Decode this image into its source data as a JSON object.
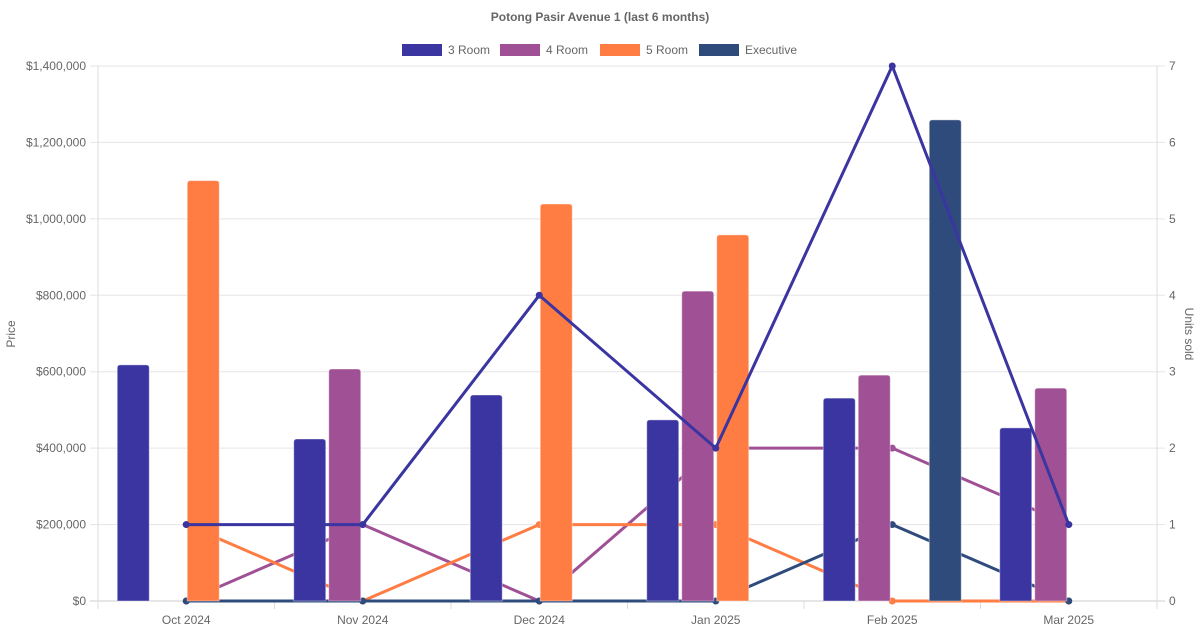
{
  "chart_data": {
    "type": "bar",
    "title": "Potong Pasir Avenue 1 (last 6 months)",
    "categories": [
      "Oct 2024",
      "Nov 2024",
      "Dec 2024",
      "Jan 2025",
      "Feb 2025",
      "Mar 2025"
    ],
    "ylabel": "Price",
    "y2label": "Units sold",
    "ylim": [
      0,
      1400000
    ],
    "y2lim": [
      0,
      7
    ],
    "yticks": [
      "$0",
      "$200,000",
      "$400,000",
      "$600,000",
      "$800,000",
      "$1,000,000",
      "$1,200,000",
      "$1,400,000"
    ],
    "y2ticks": [
      "0",
      "1",
      "2",
      "3",
      "4",
      "5",
      "6",
      "7"
    ],
    "legend_position": "top",
    "grid": true,
    "series": [
      {
        "name": "3 Room",
        "color": "#3a35a0",
        "price": [
          618000,
          424000,
          539000,
          474000,
          531000,
          453000
        ],
        "units": [
          1,
          1,
          4,
          2,
          7,
          1
        ]
      },
      {
        "name": "4 Room",
        "color": "#a05195",
        "price": [
          null,
          607000,
          null,
          811000,
          591000,
          557000
        ],
        "units": [
          0,
          1,
          0,
          2,
          2,
          1
        ]
      },
      {
        "name": "5 Room",
        "color": "#ff7c43",
        "price": [
          1100000,
          null,
          1039000,
          958000,
          null,
          null
        ],
        "units": [
          1,
          0,
          1,
          1,
          0,
          0
        ]
      },
      {
        "name": "Executive",
        "color": "#2f4b7c",
        "price": [
          null,
          null,
          null,
          null,
          1259000,
          null
        ],
        "units": [
          0,
          0,
          0,
          0,
          1,
          0
        ]
      }
    ]
  }
}
